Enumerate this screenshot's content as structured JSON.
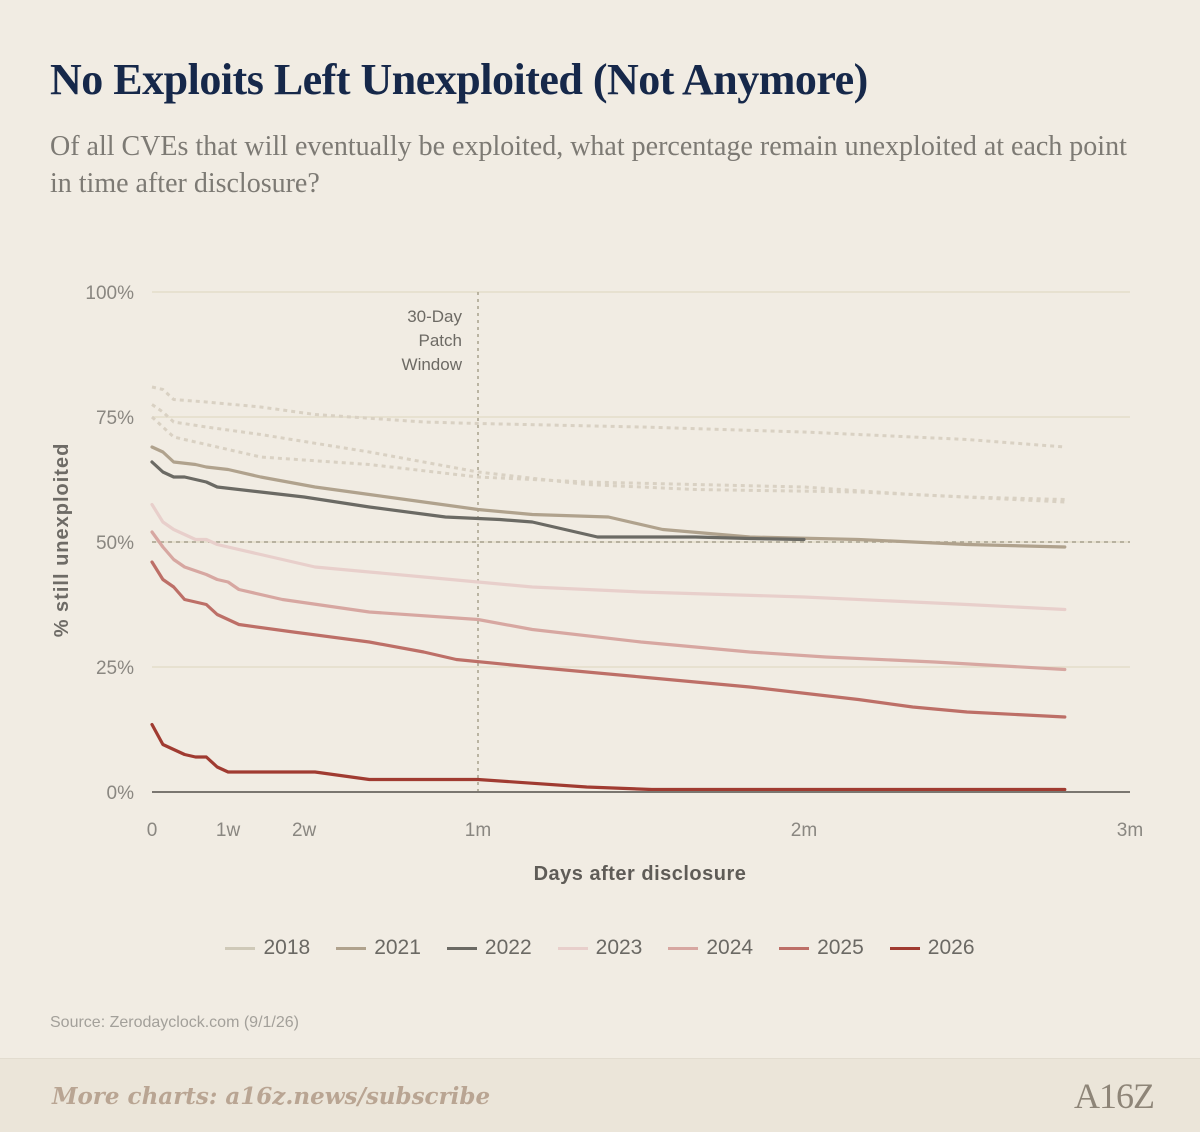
{
  "header": {
    "title": "No Exploits Left Unexploited (Not Anymore)",
    "subtitle": "Of all CVEs that will eventually be exploited, what percentage remain unexploited at each point in time after disclosure?"
  },
  "source": "Source: Zerodayclock.com (9/1/26)",
  "footer": {
    "text": "More charts: a16z.news/subscribe",
    "logo": "A16Z"
  },
  "colors": {
    "background": "#f1ece3",
    "grid": "#e4ddca",
    "axis": "#7a7670",
    "reference": "#a8a18d"
  },
  "chart_data": {
    "type": "line",
    "xlabel": "Days after disclosure",
    "ylabel": "% still unexploited",
    "xlim": [
      0,
      90
    ],
    "ylim": [
      0,
      100
    ],
    "x_ticks": [
      {
        "value": 0,
        "label": "0"
      },
      {
        "value": 7,
        "label": "1w"
      },
      {
        "value": 14,
        "label": "2w"
      },
      {
        "value": 30,
        "label": "1m"
      },
      {
        "value": 60,
        "label": "2m"
      },
      {
        "value": 90,
        "label": "3m"
      }
    ],
    "y_ticks": [
      {
        "value": 0,
        "label": "0%"
      },
      {
        "value": 25,
        "label": "25%"
      },
      {
        "value": 50,
        "label": "50%"
      },
      {
        "value": 75,
        "label": "75%"
      },
      {
        "value": 100,
        "label": "100%"
      }
    ],
    "grid": true,
    "reference_lines": [
      {
        "axis": "x",
        "value": 30,
        "label": "30-Day Patch Window"
      },
      {
        "axis": "y",
        "value": 50,
        "label": ""
      }
    ],
    "series": [
      {
        "name": "",
        "style": "dotted",
        "color": "#d9d1c3",
        "points": [
          [
            0,
            81
          ],
          [
            1,
            80.5
          ],
          [
            2,
            78.5
          ],
          [
            5,
            78
          ],
          [
            10,
            77
          ],
          [
            15,
            75.5
          ],
          [
            25,
            74
          ],
          [
            30,
            73.7
          ],
          [
            45,
            73
          ],
          [
            60,
            72
          ],
          [
            75,
            70.5
          ],
          [
            84,
            69
          ]
        ]
      },
      {
        "name": "",
        "style": "dotted",
        "color": "#d9d1c3",
        "points": [
          [
            0,
            77.5
          ],
          [
            1,
            76
          ],
          [
            2,
            74
          ],
          [
            5,
            73
          ],
          [
            10,
            71.5
          ],
          [
            20,
            68
          ],
          [
            30,
            64
          ],
          [
            40,
            61.5
          ],
          [
            50,
            60.5
          ],
          [
            65,
            60
          ],
          [
            75,
            59
          ],
          [
            84,
            58.5
          ]
        ]
      },
      {
        "name": "",
        "style": "dotted",
        "color": "#d9d1c3",
        "points": [
          [
            0,
            75
          ],
          [
            1,
            73
          ],
          [
            2,
            71
          ],
          [
            5,
            69.5
          ],
          [
            10,
            67
          ],
          [
            20,
            65.5
          ],
          [
            30,
            63
          ],
          [
            40,
            62
          ],
          [
            50,
            61.5
          ],
          [
            60,
            61
          ],
          [
            70,
            59.5
          ],
          [
            84,
            58
          ]
        ]
      },
      {
        "name": "2018",
        "style": "solid",
        "color": "#cfc9b8",
        "points": []
      },
      {
        "name": "2021",
        "style": "solid",
        "color": "#b0a28d",
        "points": [
          [
            0,
            69
          ],
          [
            1,
            68
          ],
          [
            2,
            66
          ],
          [
            4,
            65.5
          ],
          [
            5,
            65
          ],
          [
            7,
            64.5
          ],
          [
            10,
            63
          ],
          [
            15,
            61
          ],
          [
            20,
            59.5
          ],
          [
            25,
            58
          ],
          [
            30,
            56.5
          ],
          [
            35,
            55.5
          ],
          [
            42,
            55
          ],
          [
            47,
            52.5
          ],
          [
            55,
            51
          ],
          [
            65,
            50.5
          ],
          [
            75,
            49.5
          ],
          [
            84,
            49
          ]
        ]
      },
      {
        "name": "2022",
        "style": "solid",
        "color": "#6b6a64",
        "points": [
          [
            0,
            66
          ],
          [
            1,
            64
          ],
          [
            2,
            63
          ],
          [
            3,
            63
          ],
          [
            5,
            62
          ],
          [
            6,
            61
          ],
          [
            10,
            60
          ],
          [
            14,
            59
          ],
          [
            20,
            57
          ],
          [
            27,
            55
          ],
          [
            32,
            54.5
          ],
          [
            35,
            54
          ],
          [
            37,
            53
          ],
          [
            41,
            51
          ],
          [
            50,
            51
          ],
          [
            55,
            50.7
          ],
          [
            60,
            50.5
          ]
        ]
      },
      {
        "name": "2023",
        "style": "solid",
        "color": "#e8cfcb",
        "points": [
          [
            0,
            57.5
          ],
          [
            1,
            54
          ],
          [
            2,
            52.5
          ],
          [
            3,
            51.5
          ],
          [
            4,
            50.5
          ],
          [
            5,
            50.5
          ],
          [
            6,
            49.5
          ],
          [
            10,
            47.5
          ],
          [
            15,
            45
          ],
          [
            20,
            44
          ],
          [
            25,
            43
          ],
          [
            30,
            42
          ],
          [
            35,
            41
          ],
          [
            45,
            40
          ],
          [
            60,
            39
          ],
          [
            75,
            37.5
          ],
          [
            84,
            36.5
          ]
        ]
      },
      {
        "name": "2024",
        "style": "solid",
        "color": "#d7a7a1",
        "points": [
          [
            0,
            52
          ],
          [
            1,
            49
          ],
          [
            2,
            46.5
          ],
          [
            3,
            45
          ],
          [
            5,
            43.5
          ],
          [
            6,
            42.5
          ],
          [
            7,
            42
          ],
          [
            8,
            40.5
          ],
          [
            12,
            38.5
          ],
          [
            20,
            36
          ],
          [
            30,
            34.5
          ],
          [
            35,
            32.5
          ],
          [
            45,
            30
          ],
          [
            55,
            28
          ],
          [
            62,
            27
          ],
          [
            72,
            26
          ],
          [
            84,
            24.5
          ]
        ]
      },
      {
        "name": "2025",
        "style": "solid",
        "color": "#bd6f67",
        "points": [
          [
            0,
            46
          ],
          [
            1,
            42.5
          ],
          [
            2,
            41
          ],
          [
            3,
            38.5
          ],
          [
            4,
            38
          ],
          [
            5,
            37.5
          ],
          [
            6,
            35.5
          ],
          [
            7,
            34.5
          ],
          [
            8,
            33.5
          ],
          [
            13,
            32
          ],
          [
            20,
            30
          ],
          [
            25,
            28
          ],
          [
            28,
            26.5
          ],
          [
            35,
            25
          ],
          [
            45,
            23
          ],
          [
            55,
            21
          ],
          [
            65,
            18.5
          ],
          [
            70,
            17
          ],
          [
            75,
            16
          ],
          [
            84,
            15
          ]
        ]
      },
      {
        "name": "2026",
        "style": "solid",
        "color": "#a03b31",
        "points": [
          [
            0,
            13.5
          ],
          [
            1,
            9.5
          ],
          [
            2,
            8.5
          ],
          [
            3,
            7.5
          ],
          [
            4,
            7
          ],
          [
            5,
            7
          ],
          [
            6,
            5
          ],
          [
            7,
            4
          ],
          [
            10,
            4
          ],
          [
            15,
            4
          ],
          [
            20,
            2.5
          ],
          [
            30,
            2.5
          ],
          [
            40,
            1
          ],
          [
            46,
            0.5
          ],
          [
            84,
            0.5
          ]
        ]
      }
    ]
  }
}
